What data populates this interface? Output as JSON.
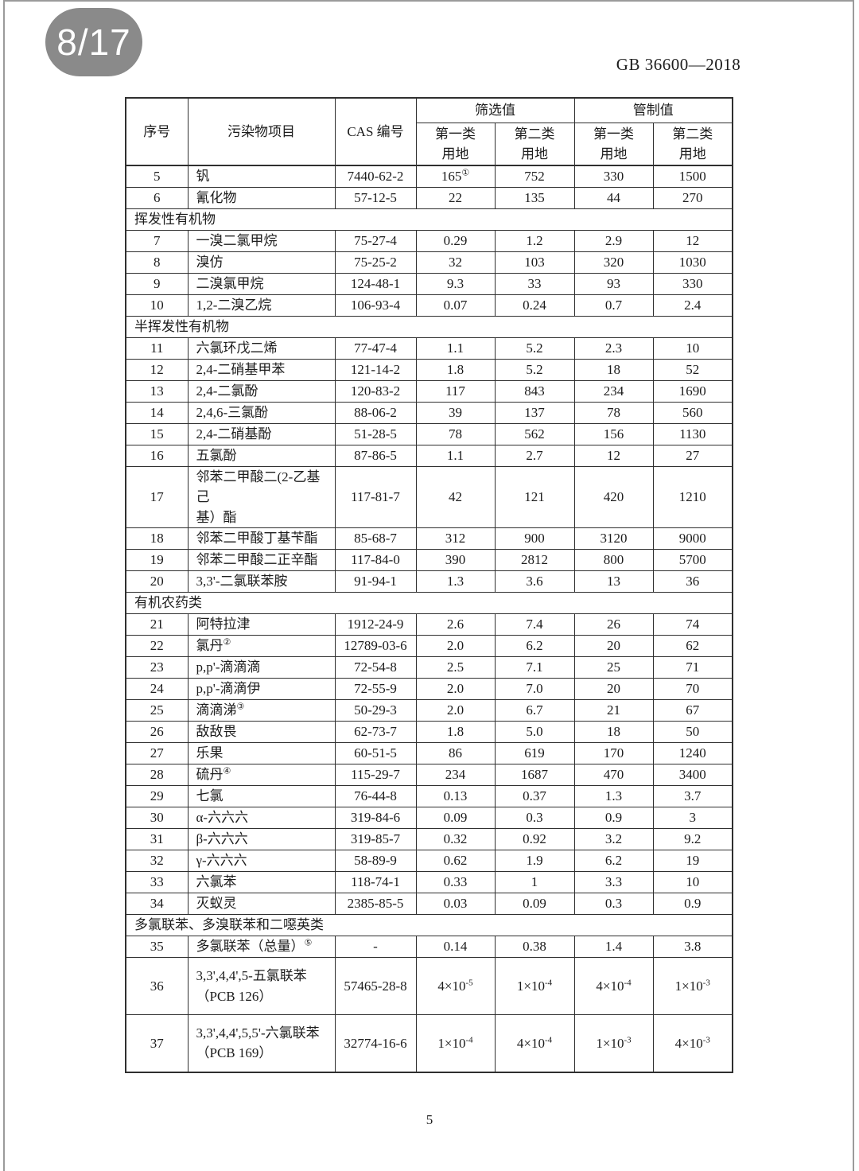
{
  "viewer": {
    "page_indicator": "8/17"
  },
  "document": {
    "code": "GB 36600—2018",
    "page_number": "5"
  },
  "colors": {
    "badge_background": "#8a8a8a",
    "badge_text": "#ffffff",
    "table_border": "#2f2f2f",
    "frame_line": "#9b9b9b",
    "text": "#1c1c1c"
  },
  "table": {
    "headers": {
      "no": "序号",
      "item": "污染物项目",
      "cas": "CAS 编号",
      "screening": "筛选值",
      "control": "管制值",
      "first_land": "第一类\n用地",
      "second_land": "第二类\n用地"
    },
    "rows": [
      {
        "type": "data",
        "no": "5",
        "name": "钒",
        "cas": "7440-62-2",
        "values": [
          "165^①",
          "752",
          "330",
          "1500"
        ]
      },
      {
        "type": "data",
        "no": "6",
        "name": "氰化物",
        "cas": "57-12-5",
        "values": [
          "22",
          "135",
          "44",
          "270"
        ]
      },
      {
        "type": "section",
        "label": "挥发性有机物"
      },
      {
        "type": "data",
        "no": "7",
        "name": "一溴二氯甲烷",
        "cas": "75-27-4",
        "values": [
          "0.29",
          "1.2",
          "2.9",
          "12"
        ]
      },
      {
        "type": "data",
        "no": "8",
        "name": "溴仿",
        "cas": "75-25-2",
        "values": [
          "32",
          "103",
          "320",
          "1030"
        ]
      },
      {
        "type": "data",
        "no": "9",
        "name": "二溴氯甲烷",
        "cas": "124-48-1",
        "values": [
          "9.3",
          "33",
          "93",
          "330"
        ]
      },
      {
        "type": "data",
        "no": "10",
        "name": "1,2-二溴乙烷",
        "cas": "106-93-4",
        "values": [
          "0.07",
          "0.24",
          "0.7",
          "2.4"
        ]
      },
      {
        "type": "section",
        "label": "半挥发性有机物"
      },
      {
        "type": "data",
        "no": "11",
        "name": "六氯环戊二烯",
        "cas": "77-47-4",
        "values": [
          "1.1",
          "5.2",
          "2.3",
          "10"
        ]
      },
      {
        "type": "data",
        "no": "12",
        "name": "2,4-二硝基甲苯",
        "cas": "121-14-2",
        "values": [
          "1.8",
          "5.2",
          "18",
          "52"
        ]
      },
      {
        "type": "data",
        "no": "13",
        "name": "2,4-二氯酚",
        "cas": "120-83-2",
        "values": [
          "117",
          "843",
          "234",
          "1690"
        ]
      },
      {
        "type": "data",
        "no": "14",
        "name": "2,4,6-三氯酚",
        "cas": "88-06-2",
        "values": [
          "39",
          "137",
          "78",
          "560"
        ]
      },
      {
        "type": "data",
        "no": "15",
        "name": "2,4-二硝基酚",
        "cas": "51-28-5",
        "values": [
          "78",
          "562",
          "156",
          "1130"
        ]
      },
      {
        "type": "data",
        "no": "16",
        "name": "五氯酚",
        "cas": "87-86-5",
        "values": [
          "1.1",
          "2.7",
          "12",
          "27"
        ]
      },
      {
        "type": "data",
        "no": "17",
        "name": "邻苯二甲酸二(2-乙基己\n基）酯",
        "cas": "117-81-7",
        "values": [
          "42",
          "121",
          "420",
          "1210"
        ],
        "height": "tall"
      },
      {
        "type": "data",
        "no": "18",
        "name": "邻苯二甲酸丁基苄酯",
        "cas": "85-68-7",
        "values": [
          "312",
          "900",
          "3120",
          "9000"
        ]
      },
      {
        "type": "data",
        "no": "19",
        "name": "邻苯二甲酸二正辛酯",
        "cas": "117-84-0",
        "values": [
          "390",
          "2812",
          "800",
          "5700"
        ]
      },
      {
        "type": "data",
        "no": "20",
        "name": "3,3'-二氯联苯胺",
        "cas": "91-94-1",
        "values": [
          "1.3",
          "3.6",
          "13",
          "36"
        ]
      },
      {
        "type": "section",
        "label": "有机农药类"
      },
      {
        "type": "data",
        "no": "21",
        "name": "阿特拉津",
        "cas": "1912-24-9",
        "values": [
          "2.6",
          "7.4",
          "26",
          "74"
        ]
      },
      {
        "type": "data",
        "no": "22",
        "name": "氯丹^②",
        "cas": "12789-03-6",
        "values": [
          "2.0",
          "6.2",
          "20",
          "62"
        ]
      },
      {
        "type": "data",
        "no": "23",
        "name": "p,p'-滴滴滴",
        "cas": "72-54-8",
        "values": [
          "2.5",
          "7.1",
          "25",
          "71"
        ]
      },
      {
        "type": "data",
        "no": "24",
        "name": "p,p'-滴滴伊",
        "cas": "72-55-9",
        "values": [
          "2.0",
          "7.0",
          "20",
          "70"
        ]
      },
      {
        "type": "data",
        "no": "25",
        "name": "滴滴涕^③",
        "cas": "50-29-3",
        "values": [
          "2.0",
          "6.7",
          "21",
          "67"
        ]
      },
      {
        "type": "data",
        "no": "26",
        "name": "敌敌畏",
        "cas": "62-73-7",
        "values": [
          "1.8",
          "5.0",
          "18",
          "50"
        ]
      },
      {
        "type": "data",
        "no": "27",
        "name": "乐果",
        "cas": "60-51-5",
        "values": [
          "86",
          "619",
          "170",
          "1240"
        ]
      },
      {
        "type": "data",
        "no": "28",
        "name": "硫丹^④",
        "cas": "115-29-7",
        "values": [
          "234",
          "1687",
          "470",
          "3400"
        ]
      },
      {
        "type": "data",
        "no": "29",
        "name": "七氯",
        "cas": "76-44-8",
        "values": [
          "0.13",
          "0.37",
          "1.3",
          "3.7"
        ]
      },
      {
        "type": "data",
        "no": "30",
        "name": "α-六六六",
        "cas": "319-84-6",
        "values": [
          "0.09",
          "0.3",
          "0.9",
          "3"
        ]
      },
      {
        "type": "data",
        "no": "31",
        "name": "β-六六六",
        "cas": "319-85-7",
        "values": [
          "0.32",
          "0.92",
          "3.2",
          "9.2"
        ]
      },
      {
        "type": "data",
        "no": "32",
        "name": "γ-六六六",
        "cas": "58-89-9",
        "values": [
          "0.62",
          "1.9",
          "6.2",
          "19"
        ]
      },
      {
        "type": "data",
        "no": "33",
        "name": "六氯苯",
        "cas": "118-74-1",
        "values": [
          "0.33",
          "1",
          "3.3",
          "10"
        ]
      },
      {
        "type": "data",
        "no": "34",
        "name": "灭蚁灵",
        "cas": "2385-85-5",
        "values": [
          "0.03",
          "0.09",
          "0.3",
          "0.9"
        ]
      },
      {
        "type": "section",
        "label": "多氯联苯、多溴联苯和二噁英类"
      },
      {
        "type": "data",
        "no": "35",
        "name": "多氯联苯（总量）^⑤",
        "cas": "-",
        "values": [
          "0.14",
          "0.38",
          "1.4",
          "3.8"
        ]
      },
      {
        "type": "data",
        "no": "36",
        "name": "3,3',4,4',5-五氯联苯\n（PCB 126）",
        "cas": "57465-28-8",
        "values": [
          "4×10^-5",
          "1×10^-4",
          "4×10^-4",
          "1×10^-3"
        ],
        "height": "xtall"
      },
      {
        "type": "data",
        "no": "37",
        "name": "3,3',4,4',5,5'-六氯联苯\n（PCB 169）",
        "cas": "32774-16-6",
        "values": [
          "1×10^-4",
          "4×10^-4",
          "1×10^-3",
          "4×10^-3"
        ],
        "height": "xtall"
      }
    ]
  }
}
